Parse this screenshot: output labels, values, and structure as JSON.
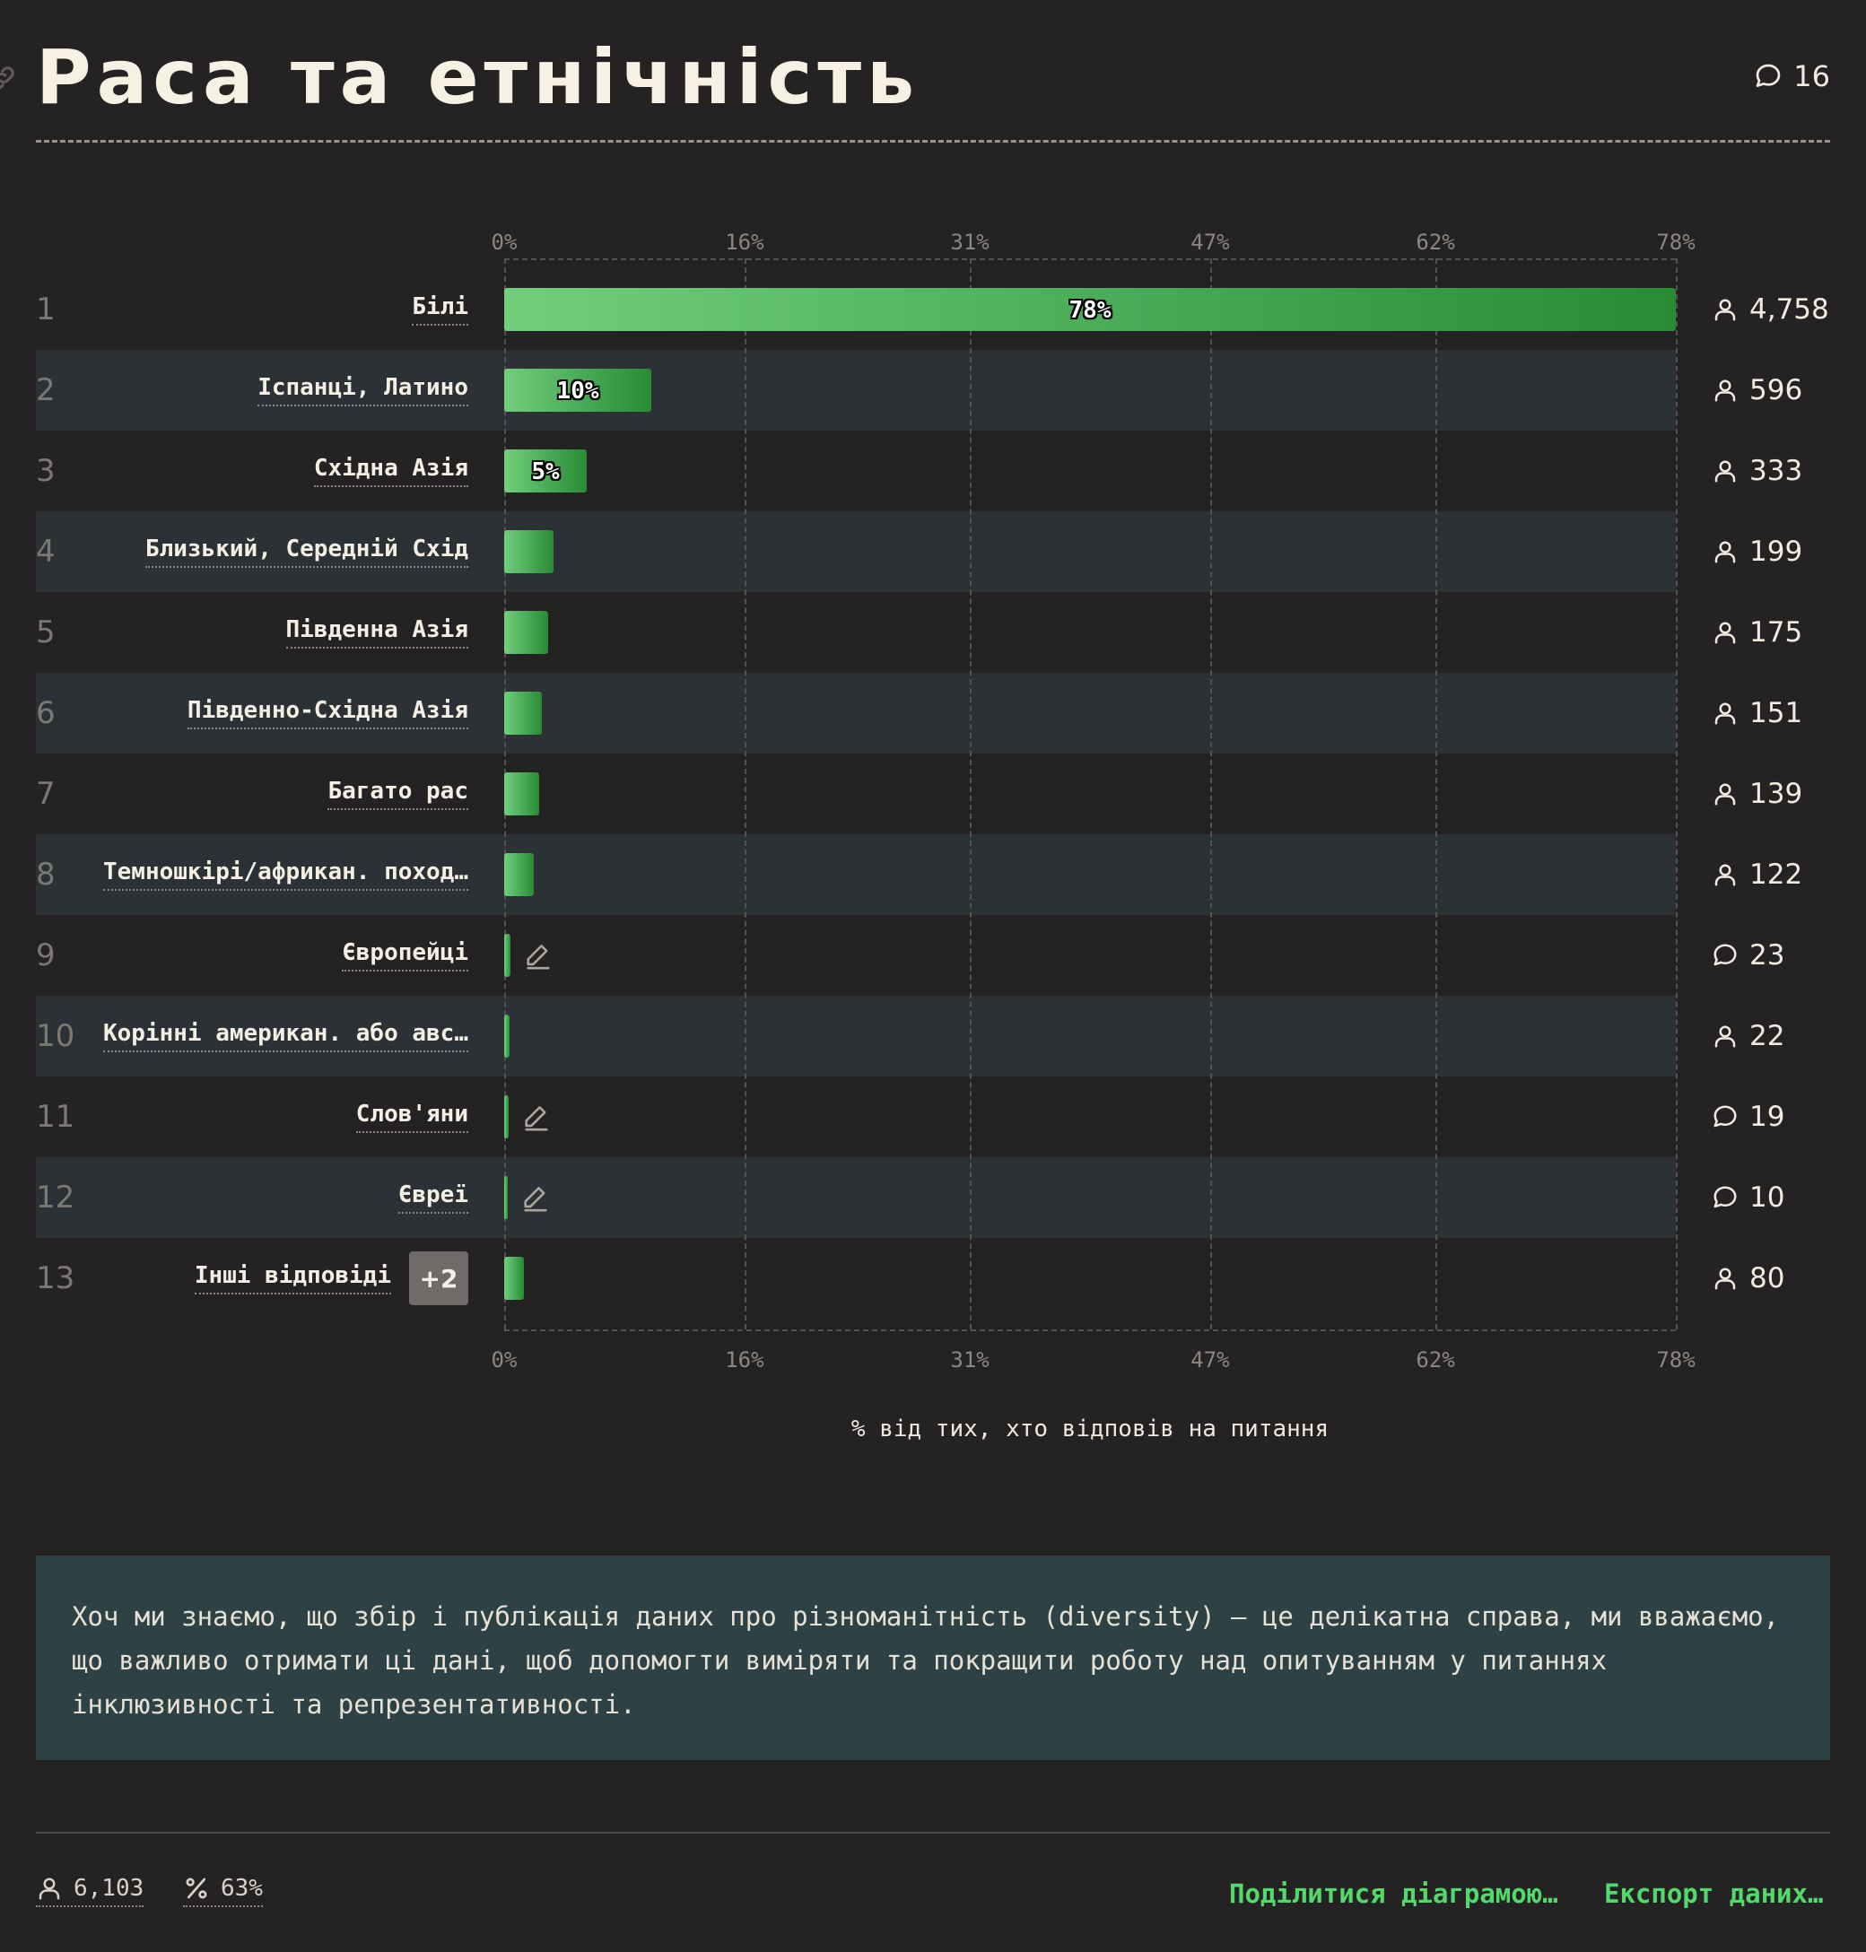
{
  "header": {
    "title": "Раса та етнічність",
    "comment_count": "16"
  },
  "chart_data": {
    "type": "bar",
    "orientation": "horizontal",
    "ticks": [
      "0%",
      "16%",
      "31%",
      "47%",
      "62%",
      "78%"
    ],
    "xlim": [
      0,
      78
    ],
    "xlabel": "% від тих, хто відповів на питання",
    "rows": [
      {
        "rank": "1",
        "label": "Білі",
        "value": 78,
        "value_label": "78%",
        "count": "4,758",
        "count_icon": "user-icon"
      },
      {
        "rank": "2",
        "label": "Іспанці, Латино",
        "value": 9.8,
        "value_label": "10%",
        "count": "596",
        "count_icon": "user-icon"
      },
      {
        "rank": "3",
        "label": "Східна Азія",
        "value": 5.5,
        "value_label": "5%",
        "count": "333",
        "count_icon": "user-icon"
      },
      {
        "rank": "4",
        "label": "Близький, Середній Схід",
        "value": 3.3,
        "value_label": "",
        "count": "199",
        "count_icon": "user-icon"
      },
      {
        "rank": "5",
        "label": "Південна Азія",
        "value": 2.9,
        "value_label": "",
        "count": "175",
        "count_icon": "user-icon"
      },
      {
        "rank": "6",
        "label": "Південно-Східна Азія",
        "value": 2.5,
        "value_label": "",
        "count": "151",
        "count_icon": "user-icon"
      },
      {
        "rank": "7",
        "label": "Багато рас",
        "value": 2.3,
        "value_label": "",
        "count": "139",
        "count_icon": "user-icon"
      },
      {
        "rank": "8",
        "label": "Темношкірі/африкан. поход…",
        "value": 2.0,
        "value_label": "",
        "count": "122",
        "count_icon": "user-icon"
      },
      {
        "rank": "9",
        "label": "Європейці",
        "value": 0.4,
        "value_label": "",
        "count": "23",
        "count_icon": "comment-icon",
        "edit": true
      },
      {
        "rank": "10",
        "label": "Корінні америкaн. або авс…",
        "value": 0.36,
        "value_label": "",
        "count": "22",
        "count_icon": "user-icon"
      },
      {
        "rank": "11",
        "label": "Слов'яни",
        "value": 0.31,
        "value_label": "",
        "count": "19",
        "count_icon": "comment-icon",
        "edit": true
      },
      {
        "rank": "12",
        "label": "Євреї",
        "value": 0.16,
        "value_label": "",
        "count": "10",
        "count_icon": "comment-icon",
        "edit": true
      },
      {
        "rank": "13",
        "label": "Інші відповіді",
        "value": 1.3,
        "value_label": "",
        "count": "80",
        "count_icon": "user-icon",
        "badge": "+2"
      }
    ]
  },
  "note": "Хоч ми знаємо, що збір і публікація даних про різноманітність (diversity) — це делікатна справа, ми вважаємо, що важливо отримати ці дані, щоб допомогти виміряти та покращити роботу над опитуванням у питаннях інклюзивності та репрезентативності.",
  "footer": {
    "respondents": "6,103",
    "percent": "63%",
    "share_label": "Поділитися діаграмою…",
    "export_label": "Експорт даних…"
  },
  "colors": {
    "background": "#252223",
    "row_alt": "#2b3134",
    "bar_start": "#72cf7c",
    "bar_end": "#2a8b34",
    "note_bg": "#2e4144",
    "link": "#52d96b"
  }
}
